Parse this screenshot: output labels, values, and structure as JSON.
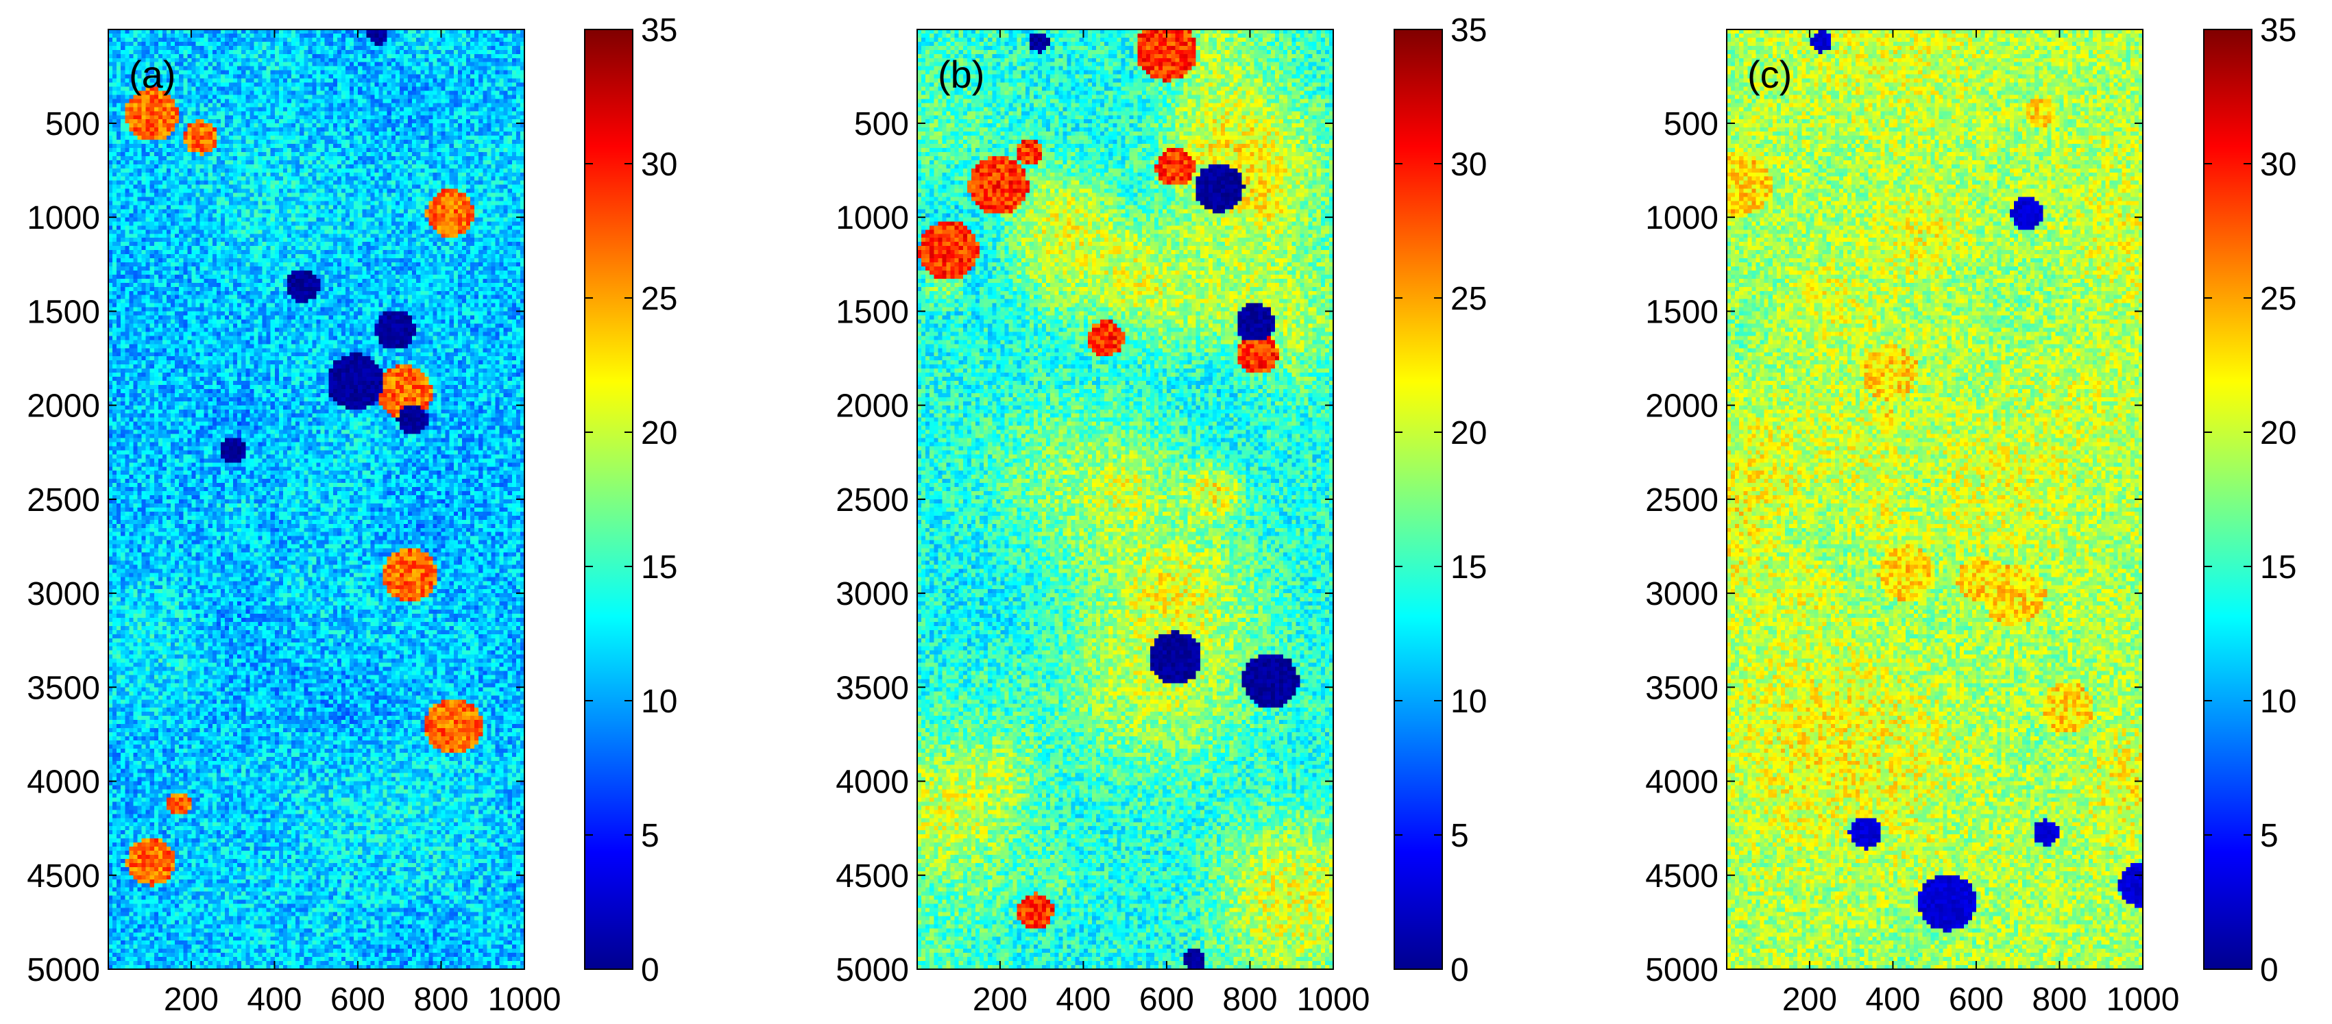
{
  "chart_data": [
    {
      "type": "heatmap",
      "panel_label": "(a)",
      "title": "",
      "xlabel": "",
      "ylabel": "",
      "xlim": [
        1,
        1000
      ],
      "ylim": [
        5000,
        1
      ],
      "x_ticks": [
        "200",
        "400",
        "600",
        "800",
        "1000"
      ],
      "y_ticks": [
        "500",
        "1000",
        "1500",
        "2000",
        "2500",
        "3000",
        "3500",
        "4000",
        "4500",
        "5000"
      ],
      "colorbar": {
        "range": [
          0,
          35
        ],
        "ticks": [
          "0",
          "5",
          "10",
          "15",
          "20",
          "25",
          "30",
          "35"
        ],
        "colormap": "jet"
      },
      "value_summary": {
        "typical_range": [
          8,
          15
        ],
        "background_mean": 11,
        "low_patch_value": 0,
        "high_spots_value": 30
      }
    },
    {
      "type": "heatmap",
      "panel_label": "(b)",
      "title": "",
      "xlabel": "",
      "ylabel": "",
      "xlim": [
        1,
        1000
      ],
      "ylim": [
        5000,
        1
      ],
      "x_ticks": [
        "200",
        "400",
        "600",
        "800",
        "1000"
      ],
      "y_ticks": [
        "500",
        "1000",
        "1500",
        "2000",
        "2500",
        "3000",
        "3500",
        "4000",
        "4500",
        "5000"
      ],
      "colorbar": {
        "range": [
          0,
          35
        ],
        "ticks": [
          "0",
          "5",
          "10",
          "15",
          "20",
          "25",
          "30",
          "35"
        ],
        "colormap": "jet"
      },
      "value_summary": {
        "typical_range": [
          10,
          30
        ],
        "background_mean": 14,
        "low_patch_value": 0,
        "high_spots_value": 32
      }
    },
    {
      "type": "heatmap",
      "panel_label": "(c)",
      "title": "",
      "xlabel": "",
      "ylabel": "",
      "xlim": [
        1,
        1000
      ],
      "ylim": [
        5000,
        1
      ],
      "x_ticks": [
        "200",
        "400",
        "600",
        "800",
        "1000"
      ],
      "y_ticks": [
        "500",
        "1000",
        "1500",
        "2000",
        "2500",
        "3000",
        "3500",
        "4000",
        "4500",
        "5000"
      ],
      "colorbar": {
        "range": [
          0,
          35
        ],
        "ticks": [
          "0",
          "5",
          "10",
          "15",
          "20",
          "25",
          "30",
          "35"
        ],
        "colormap": "jet"
      },
      "value_summary": {
        "typical_range": [
          14,
          25
        ],
        "background_mean": 19,
        "low_patch_value": 2,
        "high_spots_value": 26
      }
    }
  ],
  "colors": {
    "jet_stops": [
      "#00008f",
      "#0000ff",
      "#00ffff",
      "#ffff00",
      "#ff0000",
      "#800000"
    ]
  }
}
